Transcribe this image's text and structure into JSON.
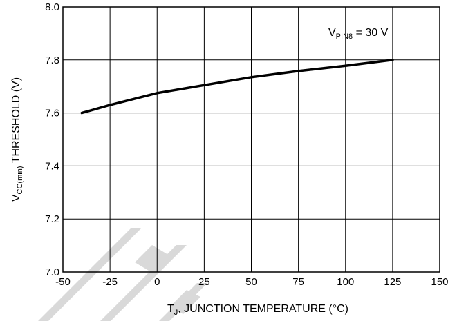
{
  "chart_data": {
    "type": "line",
    "title": "",
    "annotation": {
      "v": "V",
      "sub": "PIN8",
      "rest": " = 30 V"
    },
    "xlabel": {
      "main": "T",
      "sub": "J",
      "rest": ", JUNCTION TEMPERATURE (°C)"
    },
    "ylabel": {
      "main": "V",
      "sub": "CC(min)",
      "rest": " THRESHOLD (V)"
    },
    "xlim": [
      -50,
      150
    ],
    "ylim": [
      7.0,
      8.0
    ],
    "xticks": [
      -50,
      -25,
      0,
      25,
      50,
      75,
      100,
      125,
      150
    ],
    "yticks": [
      7.0,
      7.2,
      7.4,
      7.6,
      7.8,
      8.0
    ],
    "xtick_labels": [
      "-50",
      "-25",
      "0",
      "25",
      "50",
      "75",
      "100",
      "125",
      "150"
    ],
    "ytick_labels": [
      "7.0",
      "7.2",
      "7.4",
      "7.6",
      "7.8",
      "8.0"
    ],
    "grid": true,
    "series": [
      {
        "x": [
          -40,
          -25,
          0,
          25,
          50,
          75,
          100,
          125
        ],
        "y": [
          7.6,
          7.63,
          7.675,
          7.705,
          7.735,
          7.758,
          7.778,
          7.8
        ]
      }
    ]
  }
}
